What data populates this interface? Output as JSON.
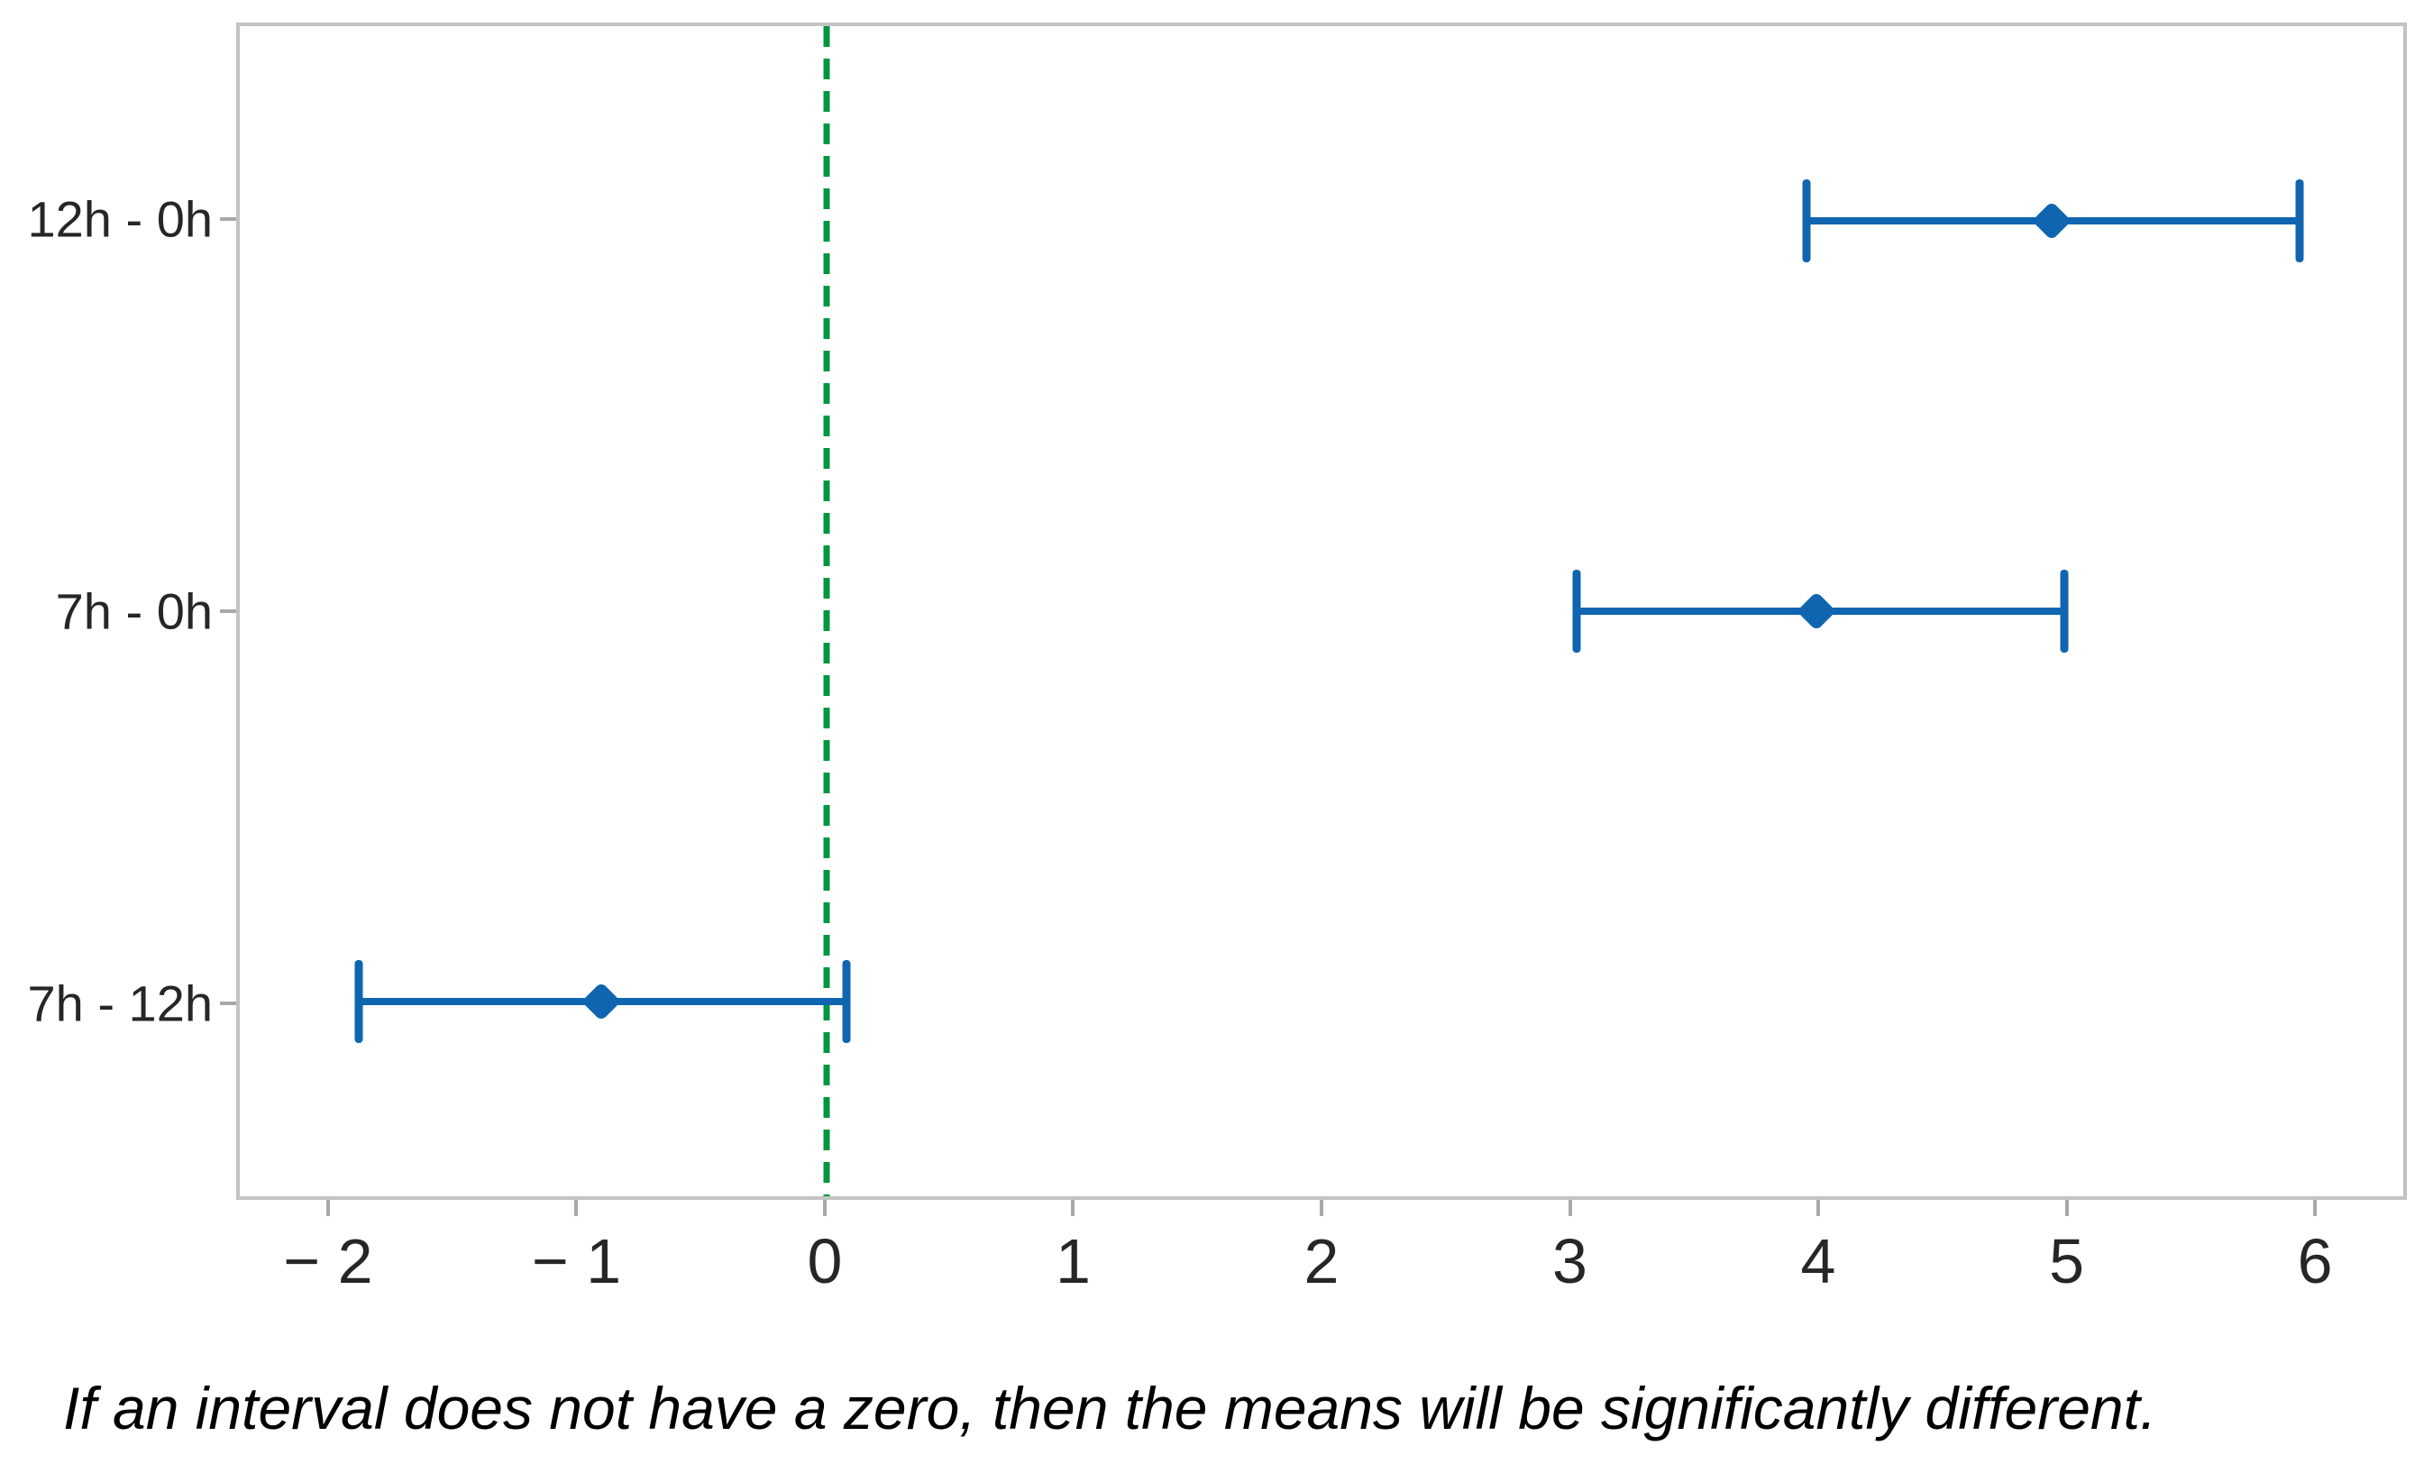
{
  "page": {
    "background": "#ffffff"
  },
  "chart_data": {
    "type": "interval",
    "subtype": "mean-difference-confidence-intervals",
    "orientation": "horizontal",
    "title": "",
    "xlabel": "",
    "ylabel": "",
    "categories": [
      "12h - 0h",
      "7h - 0h",
      "7h - 12h"
    ],
    "intervals": [
      {
        "label": "12h - 0h",
        "lower": 3.96,
        "center": 4.95,
        "upper": 5.95
      },
      {
        "label": "7h - 0h",
        "lower": 3.03,
        "center": 4.0,
        "upper": 5.0
      },
      {
        "label": "7h - 12h",
        "lower": -1.89,
        "center": -0.91,
        "upper": 0.08
      }
    ],
    "x_ticks": [
      -2,
      -1,
      0,
      1,
      2,
      3,
      4,
      5,
      6
    ],
    "x_tick_labels": [
      "− 2",
      "− 1",
      "0",
      "1",
      "2",
      "3",
      "4",
      "5",
      "6"
    ],
    "xlim": [
      -2.37,
      6.37
    ],
    "reference_line": {
      "x": 0,
      "style": "dashed",
      "color": "#009640"
    },
    "grid": false,
    "legend": false,
    "colors": {
      "interval": "#0f65b0",
      "reference": "#009640",
      "frame": "#c3c3c3",
      "tick": "#a8a8a8",
      "text": "#262626"
    },
    "caption": "If an interval does not have a zero, then the means will be significantly different."
  }
}
